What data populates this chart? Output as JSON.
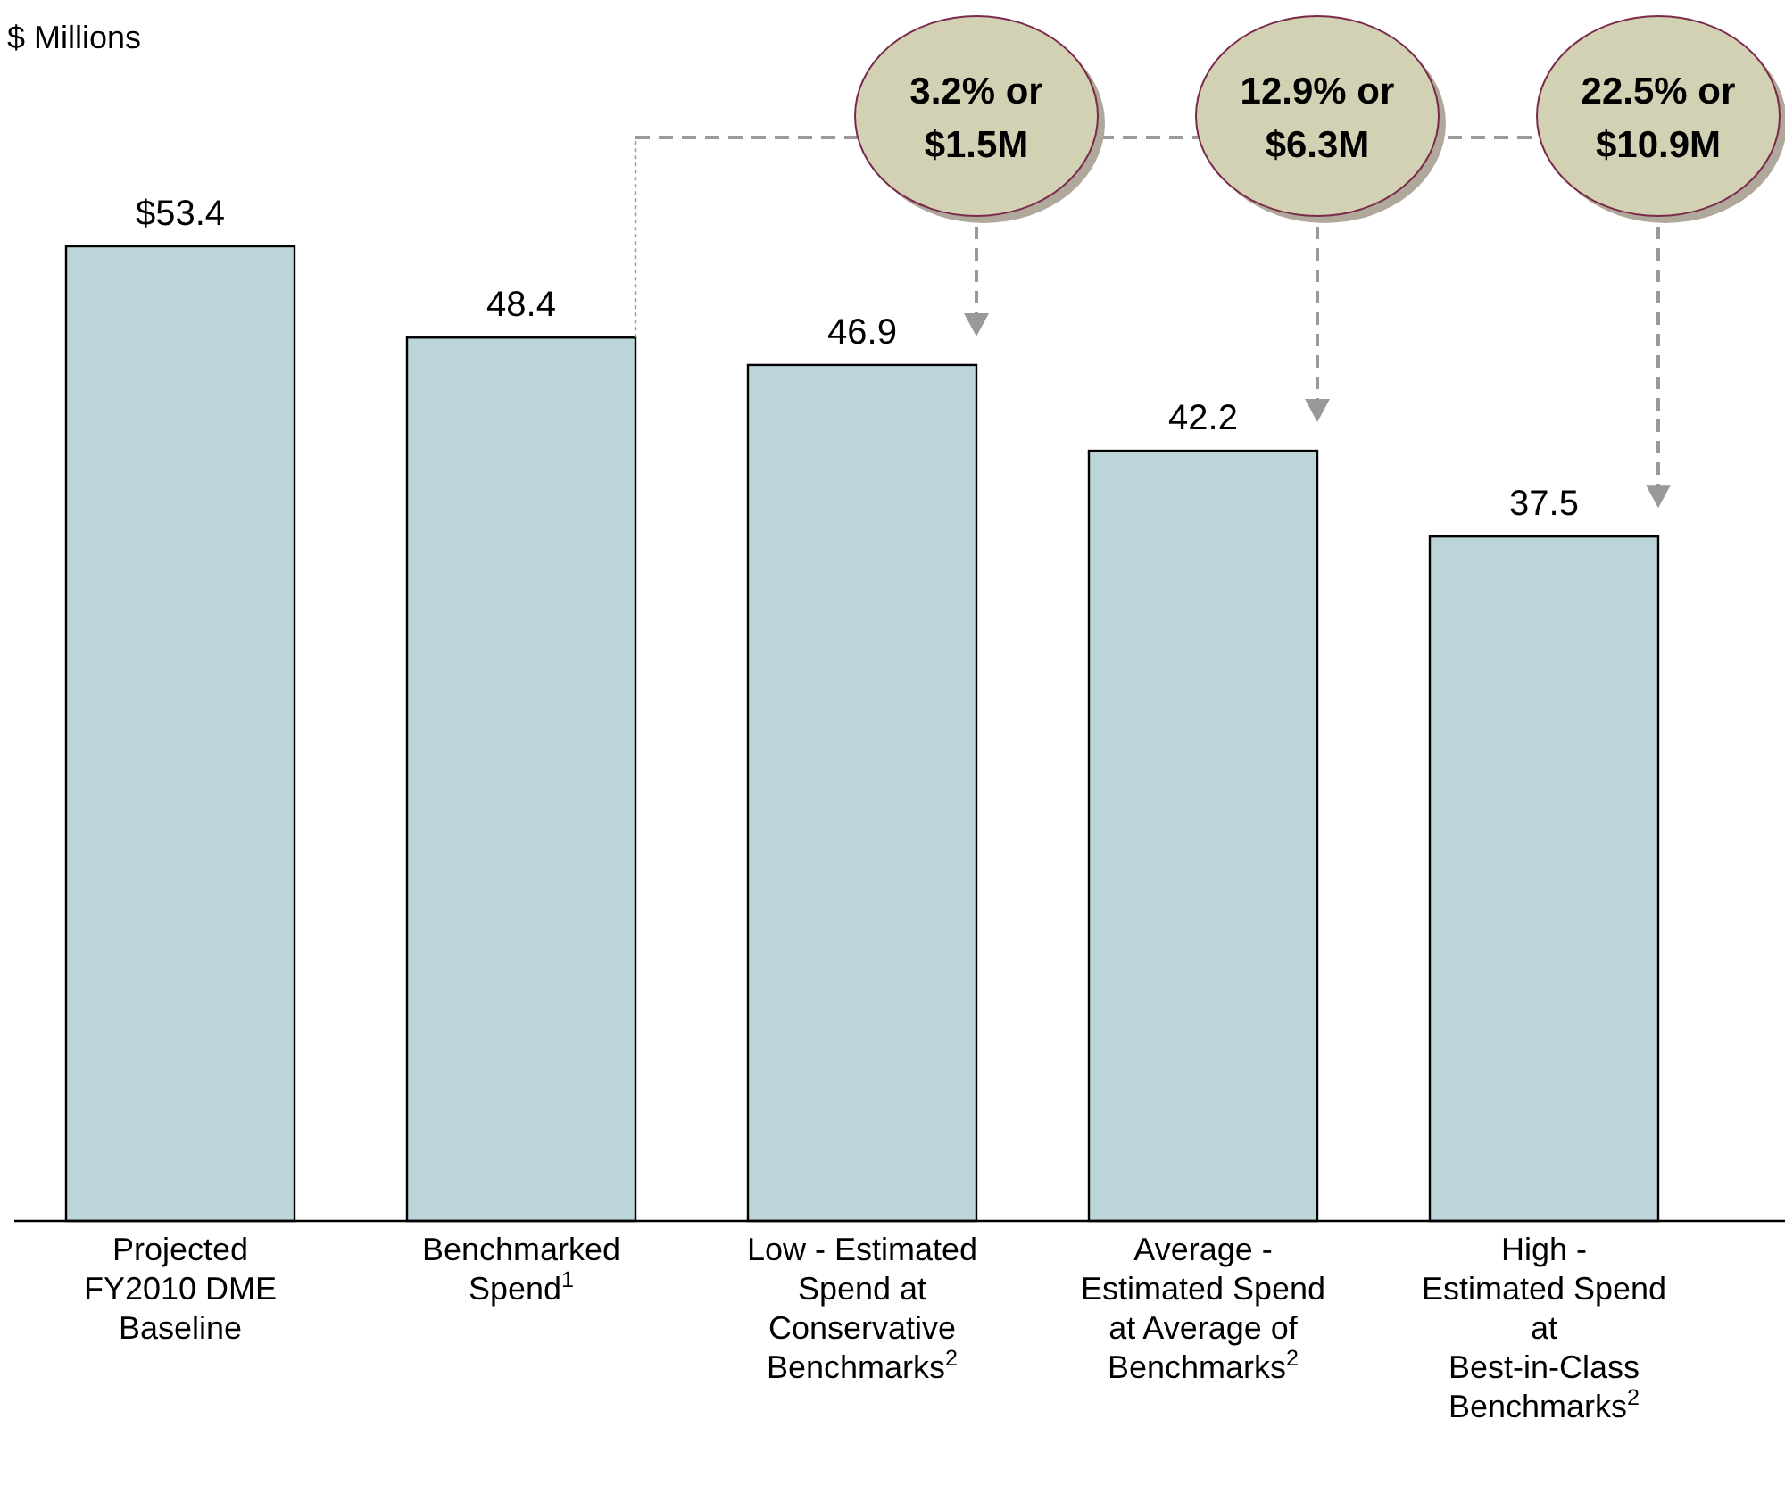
{
  "chart_data": {
    "type": "bar",
    "subtitle": "$ Millions",
    "categories": [
      "Projected FY2010 DME Baseline",
      "Benchmarked Spend$^{1}$",
      "Low - Estimated Spend at Conservative Benchmarks$^{2}$",
      "Average - Estimated Spend at Average of Benchmarks$^{2}$",
      "High - Estimated Spend at Best-in-Class Benchmarks$^{2}$"
    ],
    "values": [
      53.4,
      48.4,
      46.9,
      42.2,
      37.5
    ],
    "value_labels": [
      "$53.4",
      "48.4",
      "46.9",
      "42.2",
      "37.5"
    ],
    "color": "#bcd5da",
    "annotations": [
      "3.2% or\n$1.5M",
      "12.9% or\n$6.3M",
      "22.5% or\n$10.9M"
    ]
  }
}
